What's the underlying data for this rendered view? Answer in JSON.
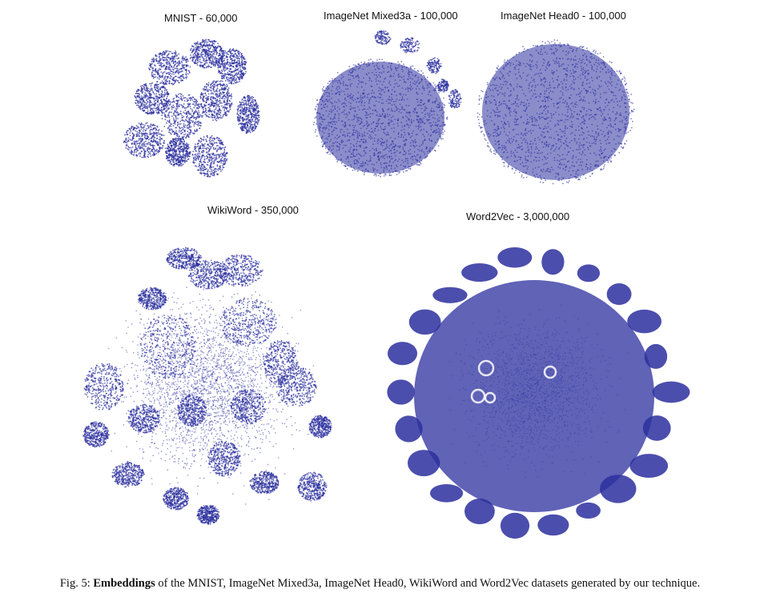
{
  "figure": {
    "panels": [
      {
        "title": "MNIST - 60,000"
      },
      {
        "title": "ImageNet Mixed3a - 100,000"
      },
      {
        "title": "ImageNet Head0 - 100,000"
      },
      {
        "title": "WikiWord - 350,000"
      },
      {
        "title": "Word2Vec - 3,000,000"
      }
    ],
    "point_color": "#2b2f9e",
    "caption": {
      "prefix": "Fig. 5: ",
      "bold": "Embeddings",
      "rest": " of the MNIST, ImageNet Mixed3a, ImageNet Head0, WikiWord and Word2Vec datasets generated by our technique."
    }
  }
}
